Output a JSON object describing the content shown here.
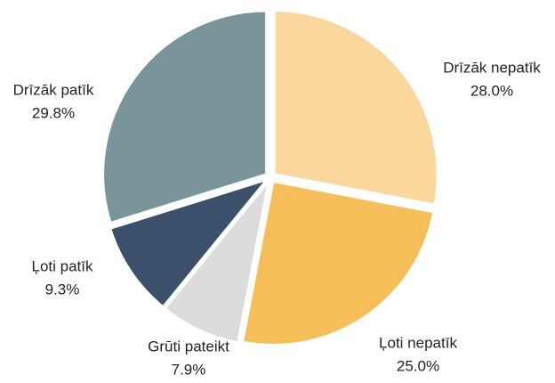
{
  "chart_data": {
    "type": "pie",
    "categories": [
      "Drīzāk nepatīk",
      "Ļoti nepatīk",
      "Grūti pateikt",
      "Ļoti patīk",
      "Drīzāk patīk"
    ],
    "values": [
      28.0,
      25.0,
      7.9,
      9.3,
      29.8
    ],
    "value_labels": [
      "28.0%",
      "25.0%",
      "7.9%",
      "9.3%",
      "29.8%"
    ],
    "colors": [
      "#fad79c",
      "#f6be58",
      "#dcdcdc",
      "#3a506b",
      "#7a9599"
    ]
  }
}
